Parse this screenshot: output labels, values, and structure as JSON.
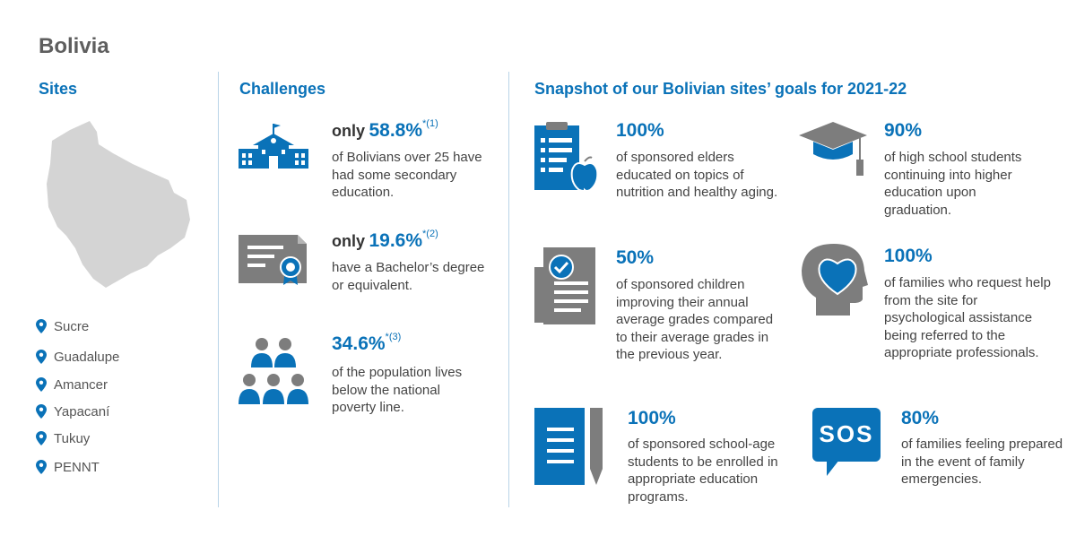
{
  "page_title": "Bolivia",
  "colors": {
    "accent": "#0a72b8",
    "gray": "#7d7d7d",
    "map_gray": "#d4d4d4"
  },
  "sites": {
    "title": "Sites",
    "items": [
      "Sucre",
      "Guadalupe",
      "Amancer",
      "Yapacaní",
      "Tukuy",
      "PENNT"
    ]
  },
  "challenges": {
    "title": "Challenges",
    "items": [
      {
        "icon": "school-building-icon",
        "prefix": "only",
        "value": "58.8%",
        "ref": "*(1)",
        "text": "of Bolivians over 25 have had some secondary education."
      },
      {
        "icon": "certificate-icon",
        "prefix": "only",
        "value": "19.6%",
        "ref": "*(2)",
        "text": "have a Bachelor’s degree or equivalent."
      },
      {
        "icon": "population-icon",
        "prefix": "",
        "value": "34.6%",
        "ref": "*(3)",
        "text": "of the population lives below the national poverty line."
      }
    ]
  },
  "goals": {
    "title": "Snapshot of our Bolivian sites’ goals for 2021-22",
    "items": [
      {
        "icon": "clipboard-apple-icon",
        "value": "100%",
        "text": "of sponsored elders educated on topics of nutrition and healthy aging."
      },
      {
        "icon": "graduation-cap-icon",
        "value": "90%",
        "text": "of high school students continuing into higher education upon graduation."
      },
      {
        "icon": "report-card-icon",
        "value": "50%",
        "text": "of sponsored children improving their annual average grades compared to their average grades in the previous year."
      },
      {
        "icon": "head-heart-icon",
        "value": "100%",
        "text": "of families who request help from the site for psychological assistance being referred to the appropriate professionals."
      },
      {
        "icon": "notebook-pencil-icon",
        "value": "100%",
        "text": "of sponsored school-age students to be enrolled in appropriate education programs."
      },
      {
        "icon": "sos-bubble-icon",
        "value": "80%",
        "text": "of families feeling prepared in the event of family emergencies.",
        "icon_label": "SOS"
      }
    ]
  }
}
